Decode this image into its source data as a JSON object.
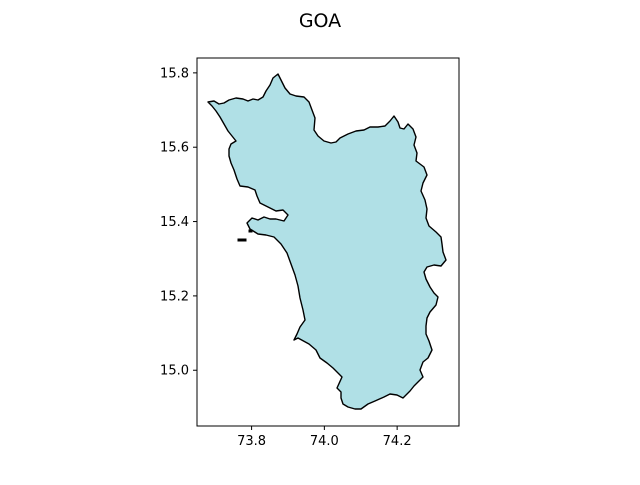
{
  "map": {
    "title": "GOA",
    "fill_color": "#b0e0e6",
    "edge_color": "#000000",
    "x_ticks": [
      "73.8",
      "74.0",
      "74.2"
    ],
    "y_ticks": [
      "15.8",
      "15.6",
      "15.4",
      "15.2",
      "15.0"
    ],
    "x_range": [
      73.65,
      74.37
    ],
    "y_range": [
      14.85,
      15.84
    ],
    "grid": false
  }
}
